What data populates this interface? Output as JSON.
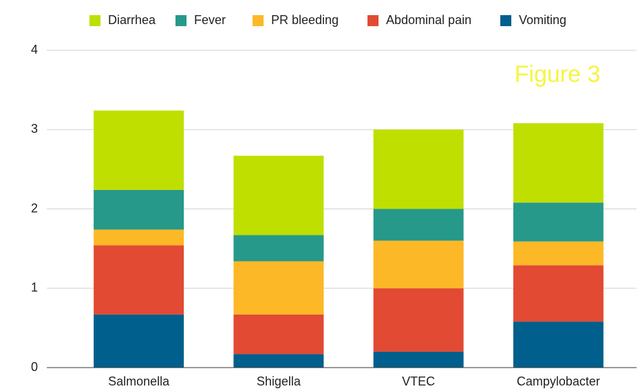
{
  "chart_data": {
    "type": "stacked_bar",
    "annotation": "Figure 3",
    "categories": [
      "Salmonella",
      "Shigella",
      "VTEC",
      "Campylobacter"
    ],
    "series": [
      {
        "name": "Diarrhea",
        "color": "#bfdf00",
        "values": [
          1.0,
          1.0,
          1.0,
          1.0
        ]
      },
      {
        "name": "Fever",
        "color": "#26998a",
        "values": [
          0.5,
          0.33,
          0.4,
          0.49
        ]
      },
      {
        "name": "PR bleeding",
        "color": "#fdb827",
        "values": [
          0.2,
          0.67,
          0.6,
          0.3
        ]
      },
      {
        "name": "Abdominal pain",
        "color": "#e24a33",
        "values": [
          0.87,
          0.5,
          0.8,
          0.71
        ]
      },
      {
        "name": "Vomiting",
        "color": "#005f8c",
        "values": [
          0.67,
          0.17,
          0.2,
          0.58
        ]
      }
    ],
    "ylim": [
      0,
      4
    ],
    "yticks": [
      0,
      1,
      2,
      3,
      4
    ],
    "grid": true,
    "legend": "top"
  }
}
